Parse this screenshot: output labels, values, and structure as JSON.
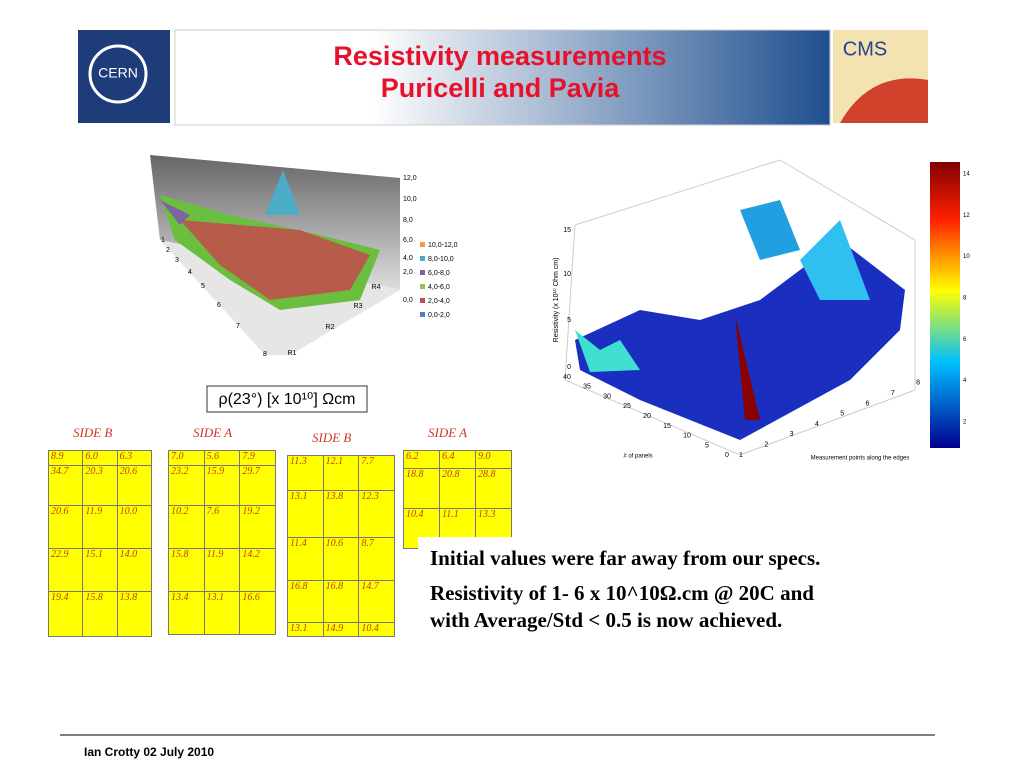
{
  "header": {
    "title": [
      "Resistivity measurements",
      "Puricelli and Pavia"
    ],
    "left_logo": "CERN",
    "right_logo": "CMS"
  },
  "left_plot": {
    "z_ticks": [
      "12,0",
      "10,0",
      "8,0",
      "6,0",
      "4,0",
      "2,0",
      "0,0"
    ],
    "rows": [
      "1",
      "2",
      "3",
      "4",
      "5",
      "6",
      "7",
      "8"
    ],
    "cols": [
      "R1",
      "R2",
      "R3",
      "R4"
    ],
    "legend": [
      "10,0-12,0",
      "8,0-10,0",
      "6,0-8,0",
      "4,0-6,0",
      "2,0-4,0",
      "0,0-2,0"
    ]
  },
  "formula": "ρ(23°) [x 10¹⁰] Ωcm",
  "right_plot": {
    "z_label": "Resistivity (x 10¹⁰ Ohm cm)",
    "z_ticks": [
      "15",
      "10",
      "5",
      "0"
    ],
    "panel_ticks": [
      "40",
      "35",
      "30",
      "25",
      "20",
      "15",
      "10",
      "5",
      "0"
    ],
    "point_ticks": [
      "1",
      "2",
      "3",
      "4",
      "5",
      "6",
      "7",
      "8"
    ],
    "panel_label": "# of panels",
    "point_label": "Measurement points along the edges",
    "colorbar_ticks": [
      "14",
      "12",
      "10",
      "8",
      "6",
      "4",
      "2"
    ]
  },
  "tables": [
    {
      "side": "SIDE B",
      "rows": [
        [
          "8.9",
          "6.0",
          "6.3"
        ],
        [
          "34.7",
          "20.3",
          "20.6"
        ],
        [
          "20.6",
          "11.9",
          "10.0"
        ],
        [
          "22.9",
          "15.1",
          "14.0"
        ],
        [
          "19.4",
          "15.8",
          "13.8"
        ]
      ]
    },
    {
      "side": "SIDE A",
      "rows": [
        [
          "7.0",
          "5.6",
          "7.9"
        ],
        [
          "23.2",
          "15.9",
          "29.7"
        ],
        [
          "10.2",
          "7.6",
          "19.2"
        ],
        [
          "15.8",
          "11.9",
          "14.2"
        ],
        [
          "13.4",
          "13.1",
          "16.6"
        ]
      ]
    },
    {
      "side": "SIDE B",
      "rows": [
        [
          "11.3",
          "12.1",
          "7.7"
        ],
        [
          "13.1",
          "13.8",
          "12.3"
        ],
        [
          "11.4",
          "10.6",
          "8.7"
        ],
        [
          "16.8",
          "16.8",
          "14.7"
        ],
        [
          "13.1",
          "14.9",
          "10.4"
        ]
      ]
    },
    {
      "side": "SIDE A",
      "rows": [
        [
          "6.2",
          "6.4",
          "9.0"
        ],
        [
          "18.8",
          "20.8",
          "28.8"
        ],
        [
          "10.4",
          "11.1",
          "13.3"
        ]
      ]
    }
  ],
  "notes": [
    "Initial values were far away from our specs.",
    "Resistivity of 1- 6 x 10^10Ω.cm @ 20C and with Average/Std < 0.5 is now achieved."
  ],
  "footer": "Ian Crotty 02 July 2010"
}
